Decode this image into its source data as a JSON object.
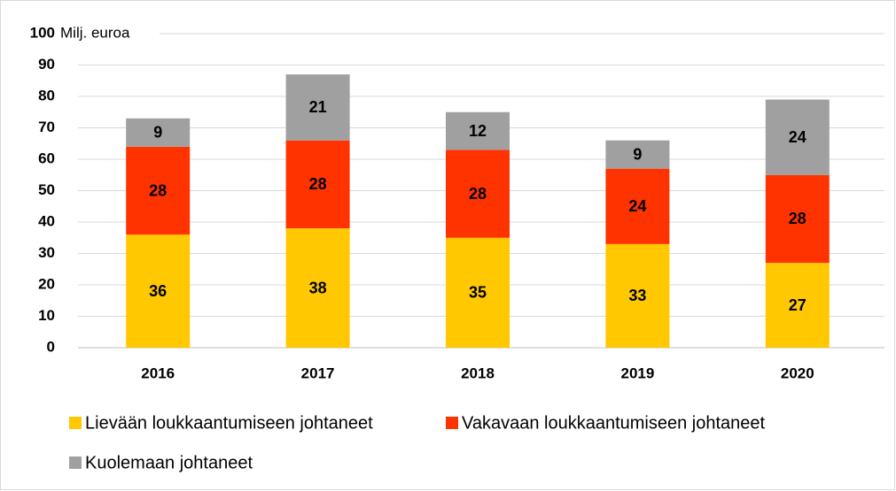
{
  "chart_data": {
    "type": "bar",
    "stacked": true,
    "y_label": "Milj. euroa",
    "categories": [
      "2016",
      "2017",
      "2018",
      "2019",
      "2020"
    ],
    "series": [
      {
        "name": "Lievään loukkaantumiseen johtaneet",
        "color": "#ffc800",
        "values": [
          36,
          38,
          35,
          33,
          27
        ]
      },
      {
        "name": "Vakavaan loukkaantumiseen johtaneet",
        "color": "#ff3300",
        "values": [
          28,
          28,
          28,
          24,
          28
        ]
      },
      {
        "name": "Kuolemaan johtaneet",
        "color": "#a0a0a0",
        "values": [
          9,
          21,
          12,
          9,
          24
        ]
      }
    ],
    "ylim": [
      0,
      100
    ],
    "yticks": [
      0,
      10,
      20,
      30,
      40,
      50,
      60,
      70,
      80,
      90,
      100
    ],
    "grid": true
  }
}
